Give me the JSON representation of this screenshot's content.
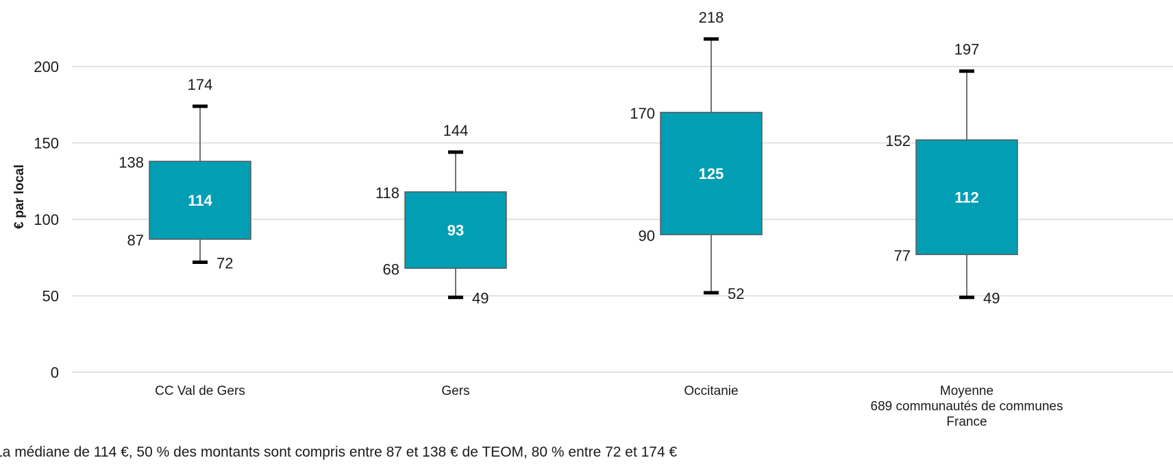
{
  "chart_data": {
    "type": "box",
    "ylabel": "€ par local",
    "ylim": [
      0,
      200
    ],
    "yticks": [
      0,
      50,
      100,
      150,
      200
    ],
    "grid": true,
    "categories": [
      [
        "CC Val de Gers"
      ],
      [
        "Gers"
      ],
      [
        "Occitanie"
      ],
      [
        "Moyenne",
        "689 communautés de communes",
        "France"
      ]
    ],
    "boxes": [
      {
        "min": 72,
        "q1": 87,
        "median": 114,
        "q3": 138,
        "max": 174
      },
      {
        "min": 49,
        "q1": 68,
        "median": 93,
        "q3": 118,
        "max": 144
      },
      {
        "min": 52,
        "q1": 90,
        "median": 125,
        "q3": 170,
        "max": 218
      },
      {
        "min": 49,
        "q1": 77,
        "median": 112,
        "q3": 152,
        "max": 197
      }
    ],
    "colors": {
      "box": "#029EB3",
      "box_border": "#5a5a5a",
      "grid": "#d9d9d9",
      "whisker": "#404040",
      "cap": "#000000"
    },
    "footnote": "La médiane de 114 €, 50 % des montants sont compris entre 87 et 138 € de TEOM, 80 % entre 72 et 174 €"
  }
}
